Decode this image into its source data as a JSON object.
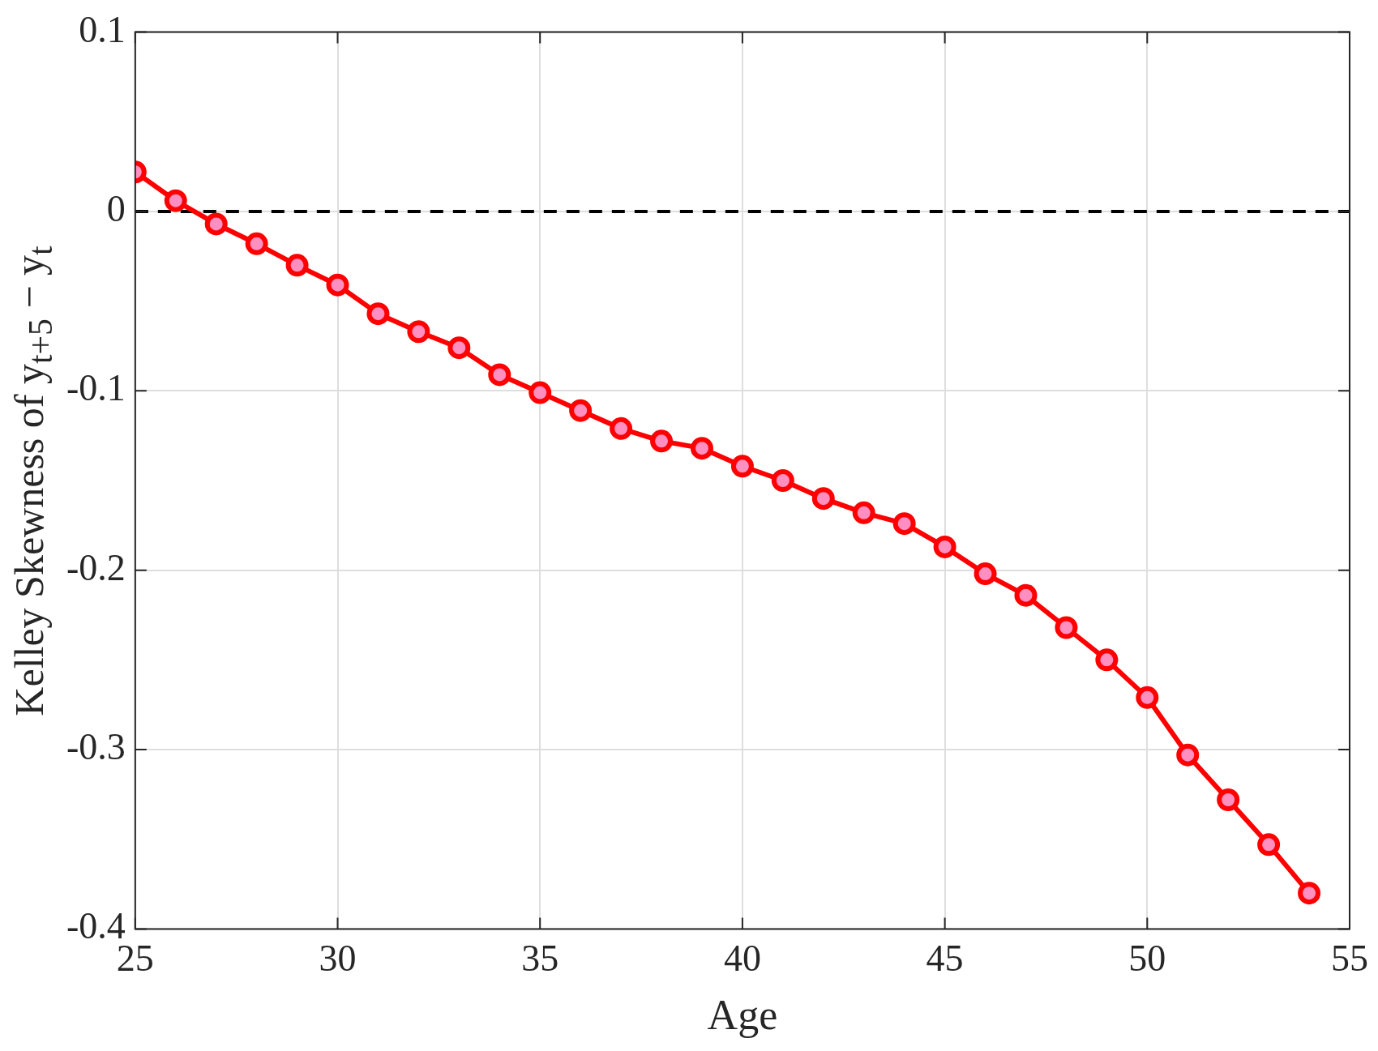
{
  "chart_data": {
    "type": "line",
    "xlabel": "Age",
    "ylabel": "Kelley Skewness of y$_{t+5}$ − y$_{t}$",
    "x": [
      25,
      26,
      27,
      28,
      29,
      30,
      31,
      32,
      33,
      34,
      35,
      36,
      37,
      38,
      39,
      40,
      41,
      42,
      43,
      44,
      45,
      46,
      47,
      48,
      49,
      50,
      51,
      52,
      53,
      54
    ],
    "series": [
      {
        "color": "#ff0000",
        "values": [
          0.022,
          0.006,
          -0.007,
          -0.018,
          -0.03,
          -0.041,
          -0.057,
          -0.067,
          -0.076,
          -0.091,
          -0.101,
          -0.111,
          -0.121,
          -0.128,
          -0.132,
          -0.142,
          -0.15,
          -0.16,
          -0.168,
          -0.174,
          -0.187,
          -0.202,
          -0.214,
          -0.232,
          -0.25,
          -0.271,
          -0.303,
          -0.328,
          -0.353,
          -0.38
        ]
      }
    ],
    "xlim": [
      25,
      55
    ],
    "xticks": [
      25,
      30,
      35,
      40,
      45,
      50,
      55
    ],
    "ylim": [
      -0.4,
      0.1
    ],
    "yticks": [
      -0.4,
      -0.3,
      -0.2,
      -0.1,
      0,
      0.1
    ],
    "ref_lines": [
      {
        "axis": "y",
        "value": 0,
        "color": "#000000",
        "line_style": "dashed"
      }
    ],
    "grid": true,
    "marker": "circle",
    "line_style": "solid",
    "legend": false
  }
}
